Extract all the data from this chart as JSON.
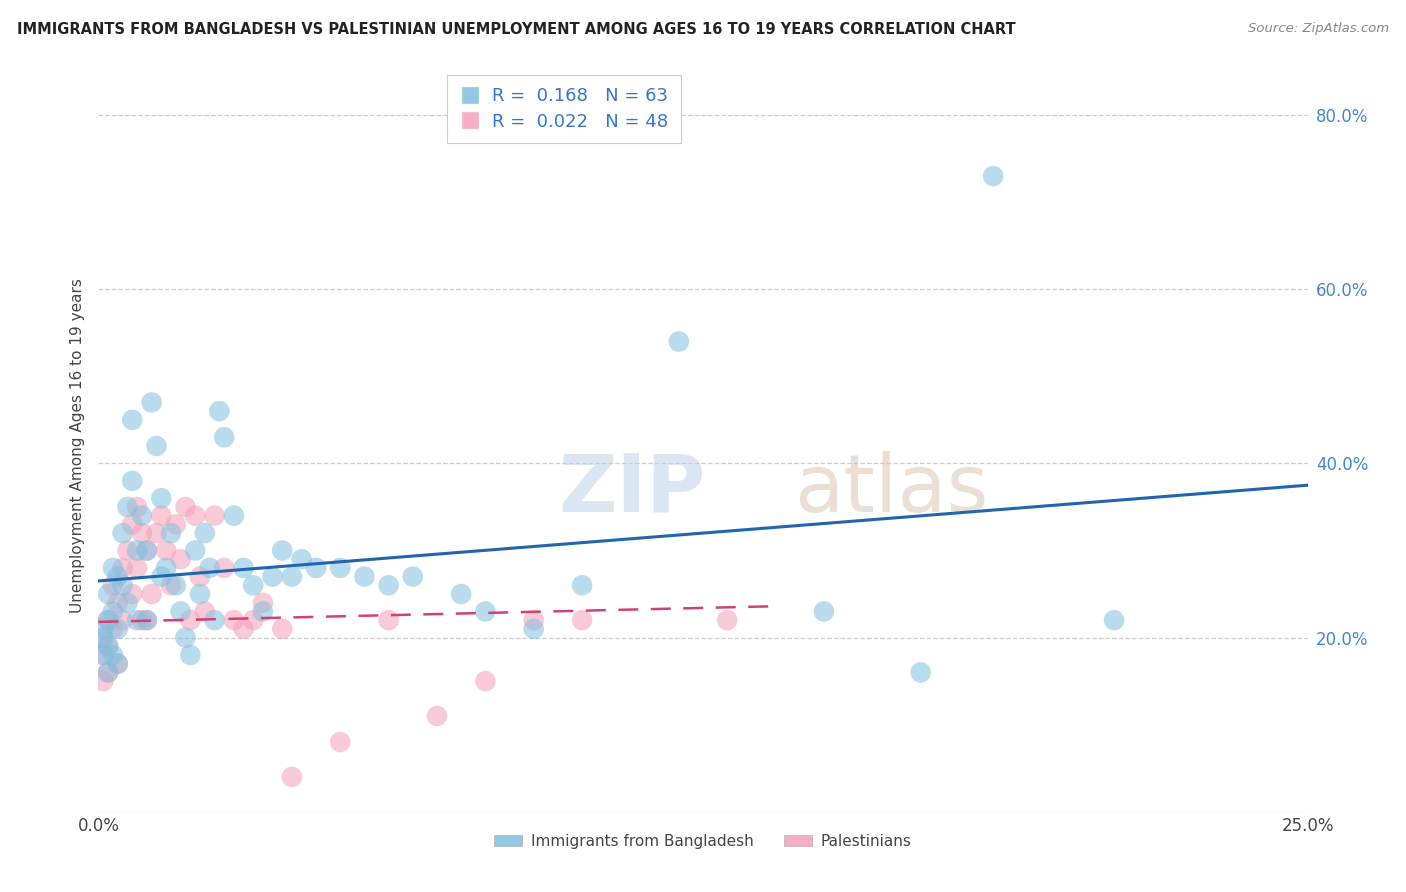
{
  "title": "IMMIGRANTS FROM BANGLADESH VS PALESTINIAN UNEMPLOYMENT AMONG AGES 16 TO 19 YEARS CORRELATION CHART",
  "source": "Source: ZipAtlas.com",
  "ylabel": "Unemployment Among Ages 16 to 19 years",
  "xlabel_blue": "Immigrants from Bangladesh",
  "xlabel_pink": "Palestinians",
  "xlim": [
    0,
    0.25
  ],
  "ylim": [
    0.0,
    0.84
  ],
  "xticks": [
    0.0,
    0.05,
    0.1,
    0.15,
    0.2,
    0.25
  ],
  "xticklabels": [
    "0.0%",
    "",
    "",
    "",
    "",
    "25.0%"
  ],
  "yticks": [
    0.0,
    0.2,
    0.4,
    0.6,
    0.8
  ],
  "yticklabels": [
    "",
    "20.0%",
    "40.0%",
    "60.0%",
    "80.0%"
  ],
  "R_blue": 0.168,
  "N_blue": 63,
  "R_pink": 0.022,
  "N_pink": 48,
  "blue_color": "#7fbfdf",
  "blue_line_color": "#2166ac",
  "pink_color": "#f4a0b8",
  "pink_line_color": "#d44070",
  "blue_scatter_x": [
    0.001,
    0.001,
    0.001,
    0.002,
    0.002,
    0.002,
    0.002,
    0.003,
    0.003,
    0.003,
    0.004,
    0.004,
    0.004,
    0.005,
    0.005,
    0.006,
    0.006,
    0.007,
    0.007,
    0.008,
    0.008,
    0.009,
    0.01,
    0.01,
    0.011,
    0.012,
    0.013,
    0.013,
    0.014,
    0.015,
    0.016,
    0.017,
    0.018,
    0.019,
    0.02,
    0.021,
    0.022,
    0.023,
    0.024,
    0.025,
    0.026,
    0.028,
    0.03,
    0.032,
    0.034,
    0.036,
    0.038,
    0.04,
    0.042,
    0.045,
    0.05,
    0.055,
    0.06,
    0.065,
    0.075,
    0.08,
    0.09,
    0.1,
    0.12,
    0.15,
    0.17,
    0.185,
    0.21
  ],
  "blue_scatter_y": [
    0.21,
    0.2,
    0.18,
    0.25,
    0.22,
    0.19,
    0.16,
    0.28,
    0.23,
    0.18,
    0.27,
    0.21,
    0.17,
    0.32,
    0.26,
    0.35,
    0.24,
    0.45,
    0.38,
    0.3,
    0.22,
    0.34,
    0.3,
    0.22,
    0.47,
    0.42,
    0.36,
    0.27,
    0.28,
    0.32,
    0.26,
    0.23,
    0.2,
    0.18,
    0.3,
    0.25,
    0.32,
    0.28,
    0.22,
    0.46,
    0.43,
    0.34,
    0.28,
    0.26,
    0.23,
    0.27,
    0.3,
    0.27,
    0.29,
    0.28,
    0.28,
    0.27,
    0.26,
    0.27,
    0.25,
    0.23,
    0.21,
    0.26,
    0.54,
    0.23,
    0.16,
    0.73,
    0.22
  ],
  "pink_scatter_x": [
    0.001,
    0.001,
    0.001,
    0.002,
    0.002,
    0.002,
    0.003,
    0.003,
    0.004,
    0.004,
    0.005,
    0.005,
    0.006,
    0.007,
    0.007,
    0.008,
    0.008,
    0.009,
    0.009,
    0.01,
    0.01,
    0.011,
    0.012,
    0.013,
    0.014,
    0.015,
    0.016,
    0.017,
    0.018,
    0.019,
    0.02,
    0.021,
    0.022,
    0.024,
    0.026,
    0.028,
    0.03,
    0.032,
    0.034,
    0.038,
    0.04,
    0.05,
    0.06,
    0.07,
    0.08,
    0.09,
    0.1,
    0.13
  ],
  "pink_scatter_y": [
    0.2,
    0.18,
    0.15,
    0.22,
    0.19,
    0.16,
    0.26,
    0.21,
    0.24,
    0.17,
    0.28,
    0.22,
    0.3,
    0.33,
    0.25,
    0.35,
    0.28,
    0.32,
    0.22,
    0.3,
    0.22,
    0.25,
    0.32,
    0.34,
    0.3,
    0.26,
    0.33,
    0.29,
    0.35,
    0.22,
    0.34,
    0.27,
    0.23,
    0.34,
    0.28,
    0.22,
    0.21,
    0.22,
    0.24,
    0.21,
    0.04,
    0.08,
    0.22,
    0.11,
    0.15,
    0.22,
    0.22,
    0.22
  ],
  "watermark_zip": "ZIP",
  "watermark_atlas": "atlas",
  "background_color": "#ffffff",
  "grid_color": "#c8c8c8"
}
